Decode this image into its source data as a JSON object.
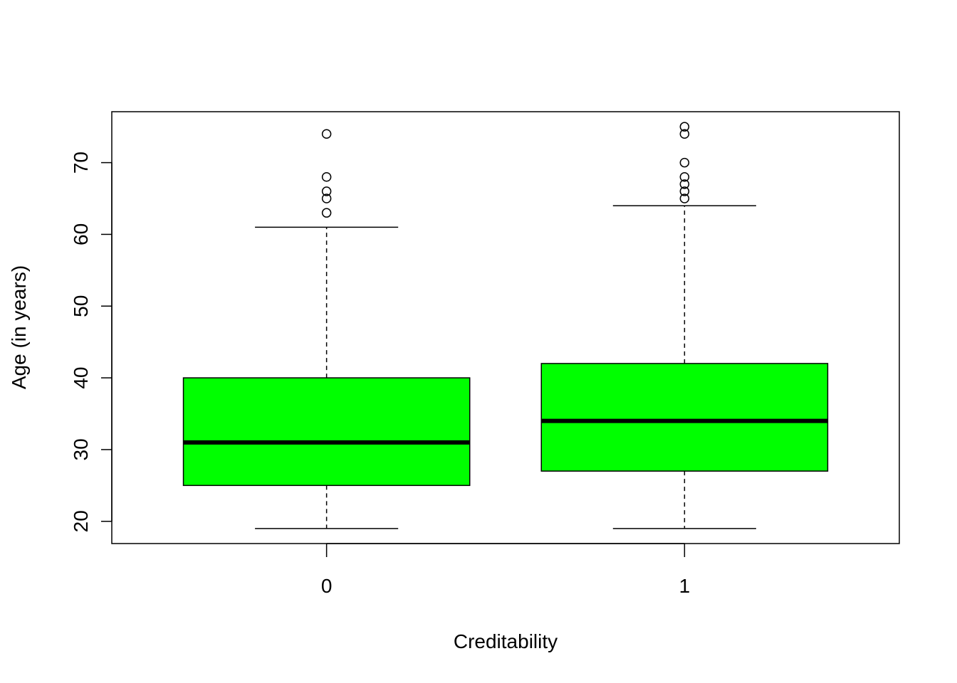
{
  "chart_data": {
    "type": "boxplot",
    "xlabel": "Creditability",
    "ylabel": "Age (in years)",
    "ylim": [
      16.9,
      77.1
    ],
    "yticks": [
      20,
      30,
      40,
      50,
      60,
      70
    ],
    "box_color": "#00ff00",
    "categories": [
      "0",
      "1"
    ],
    "boxes": [
      {
        "category": "0",
        "whisker_low": 19,
        "q1": 25,
        "median": 31,
        "q3": 40,
        "whisker_high": 61,
        "outliers": [
          63,
          65,
          66,
          68,
          74
        ]
      },
      {
        "category": "1",
        "whisker_low": 19,
        "q1": 27,
        "median": 34,
        "q3": 42,
        "whisker_high": 64,
        "outliers": [
          65,
          66,
          67,
          68,
          70,
          74,
          75
        ]
      }
    ]
  }
}
